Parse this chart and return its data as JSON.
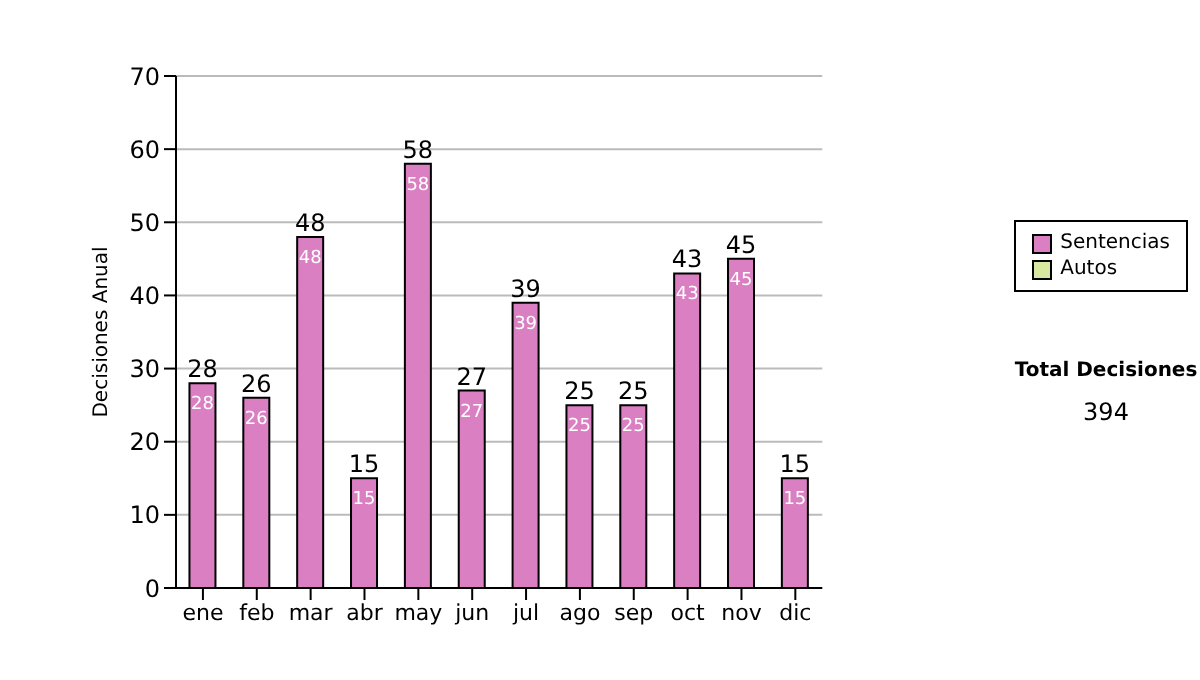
{
  "chart_data": {
    "type": "bar",
    "ylabel": "Decisiones Anual",
    "categories": [
      "ene",
      "feb",
      "mar",
      "abr",
      "may",
      "jun",
      "jul",
      "ago",
      "sep",
      "oct",
      "nov",
      "dic"
    ],
    "series": [
      {
        "name": "Sentencias",
        "color": "#da7fc2",
        "values": [
          28,
          26,
          48,
          15,
          58,
          27,
          39,
          25,
          25,
          43,
          45,
          15
        ],
        "value_labels": [
          "28",
          "26",
          "48",
          "15",
          "58",
          "27",
          "39",
          "25",
          "25",
          "43",
          "45",
          "15"
        ]
      },
      {
        "name": "Autos",
        "color": "#d8e8a0",
        "values": [
          null,
          null,
          null,
          null,
          null,
          null,
          null,
          null,
          null,
          null,
          null,
          null
        ]
      }
    ],
    "stacked": true,
    "totals": [
      "28",
      "26",
      "48",
      "15",
      "58",
      "27",
      "39",
      "25",
      "25",
      "43",
      "45",
      "15"
    ],
    "ylim": [
      0,
      70
    ],
    "yticks": [
      0,
      10,
      20,
      30,
      40,
      50,
      60,
      70
    ],
    "grid": "y",
    "legend": "right",
    "annotations": [
      "Total Decisiones",
      "394"
    ]
  }
}
